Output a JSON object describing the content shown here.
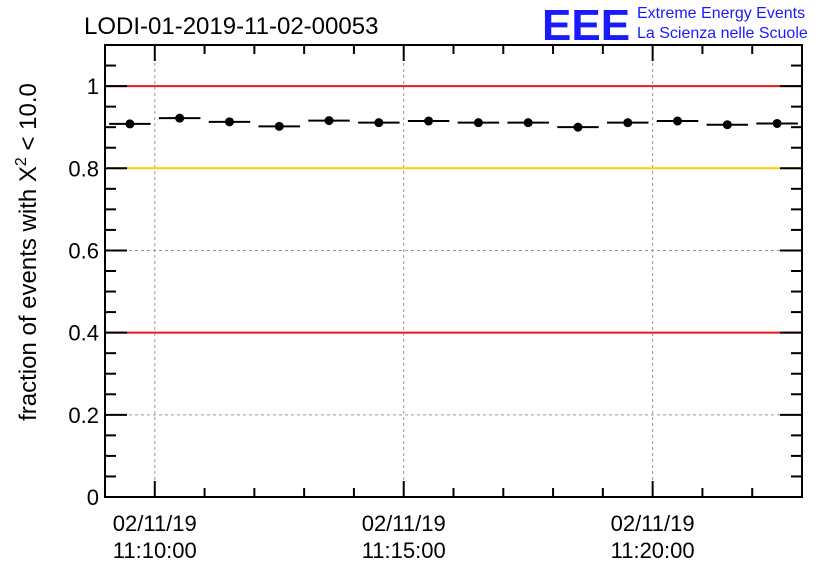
{
  "chart_data": {
    "type": "scatter",
    "title": "LODI-01-2019-11-02-00053",
    "ylabel_prefix": "fraction of events with ",
    "ylabel_symbol": "X",
    "ylabel_sup": "2",
    "ylabel_suffix": " < 10.0",
    "xlabel": "",
    "ylim": [
      0,
      1.1
    ],
    "y_ticks": [
      "0",
      "0.2",
      "0.4",
      "0.6",
      "0.8",
      "1"
    ],
    "y_tick_values": [
      0,
      0.2,
      0.4,
      0.6,
      0.8,
      1.0
    ],
    "x_tick_labels": [
      {
        "date": "02/11/19",
        "time": "11:10:00"
      },
      {
        "date": "02/11/19",
        "time": "11:15:00"
      },
      {
        "date": "02/11/19",
        "time": "11:20:00"
      }
    ],
    "x_tick_minutes": [
      0,
      5,
      10
    ],
    "xlim_minutes": [
      -1.0,
      13.0
    ],
    "grid": true,
    "reference_lines": [
      {
        "value": 1.0,
        "color": "#e8181e"
      },
      {
        "value": 0.8,
        "color": "#ffcc00"
      },
      {
        "value": 0.4,
        "color": "#e8181e"
      }
    ],
    "series": [
      {
        "name": "fraction",
        "color": "#000000",
        "bin_width_minutes": 0.8333,
        "x_minutes": [
          -0.5,
          0.5,
          1.5,
          2.5,
          3.5,
          4.5,
          5.5,
          6.5,
          7.5,
          8.5,
          9.5,
          10.5,
          11.5,
          12.5
        ],
        "values": [
          0.908,
          0.922,
          0.913,
          0.902,
          0.916,
          0.911,
          0.915,
          0.911,
          0.911,
          0.9,
          0.911,
          0.915,
          0.906,
          0.909
        ]
      }
    ]
  },
  "logo": {
    "mark": "EEE",
    "line1": "Extreme Energy Events",
    "line2": "La Scienza nelle Scuole",
    "color": "#1a1aff"
  }
}
